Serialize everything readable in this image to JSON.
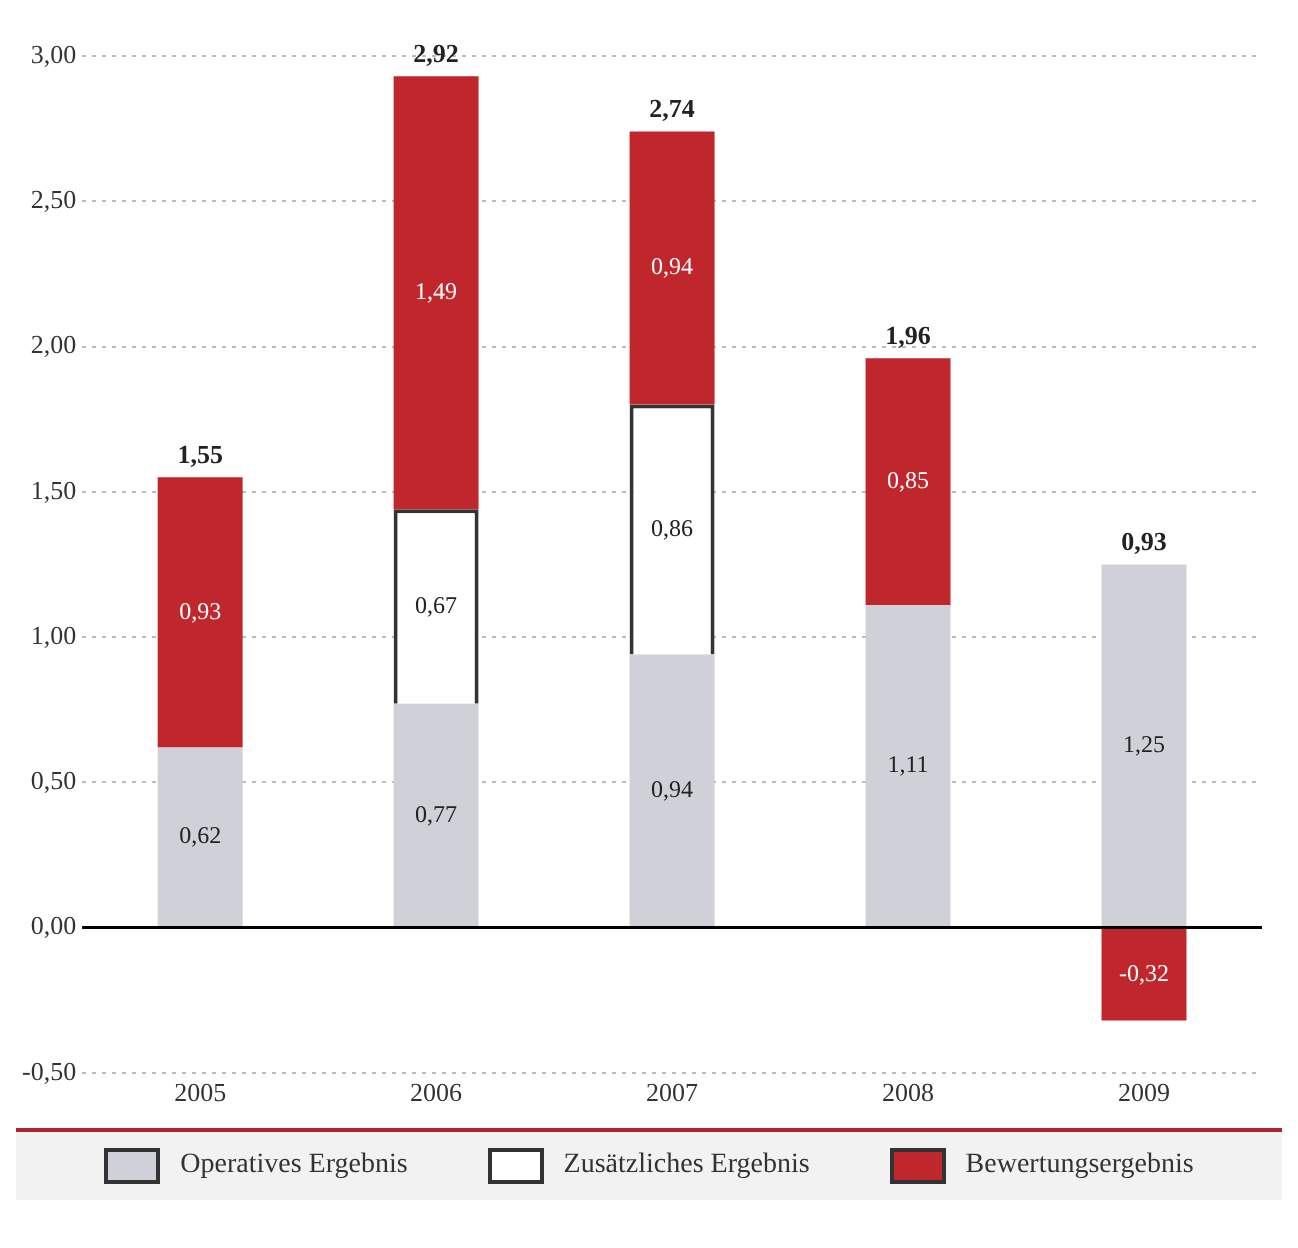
{
  "chart_data": {
    "type": "bar",
    "stacked": true,
    "categories": [
      "2005",
      "2006",
      "2007",
      "2008",
      "2009"
    ],
    "series": [
      {
        "name": "Operatives Ergebnis",
        "color": "#cfd0d8",
        "values": [
          0.62,
          0.77,
          0.94,
          1.11,
          1.25
        ],
        "value_labels": [
          "0,62",
          "0,77",
          "0,94",
          "1,11",
          "1,25"
        ]
      },
      {
        "name": "Zusätzliches Ergebnis",
        "color": "#ffffff",
        "values": [
          null,
          0.67,
          0.86,
          null,
          null
        ],
        "value_labels": [
          null,
          "0,67",
          "0,86",
          null,
          null
        ]
      },
      {
        "name": "Bewertungsergebnis",
        "color": "#c0272d",
        "values": [
          0.93,
          1.49,
          0.94,
          0.85,
          -0.32
        ],
        "value_labels": [
          "0,93",
          "1,49",
          "0,94",
          "0,85",
          "-0,32"
        ]
      }
    ],
    "totals": [
      "1,55",
      "2,92",
      "2,74",
      "1,96",
      "0,93"
    ],
    "ylim": [
      -0.5,
      3.0
    ],
    "ref_lines": [
      {
        "axis": "y",
        "value": 0,
        "color": "#000000"
      }
    ],
    "yticks": [
      {
        "value": -0.5,
        "label": "-0,50"
      },
      {
        "value": 0,
        "label": "0,00"
      },
      {
        "value": 0.5,
        "label": "0,50"
      },
      {
        "value": 1,
        "label": "1,00"
      },
      {
        "value": 1.5,
        "label": "1,50"
      },
      {
        "value": 2,
        "label": "2,00"
      },
      {
        "value": 2.5,
        "label": "2,50"
      },
      {
        "value": 3,
        "label": "3,00"
      }
    ],
    "grid": "y",
    "legend": "bottom"
  }
}
